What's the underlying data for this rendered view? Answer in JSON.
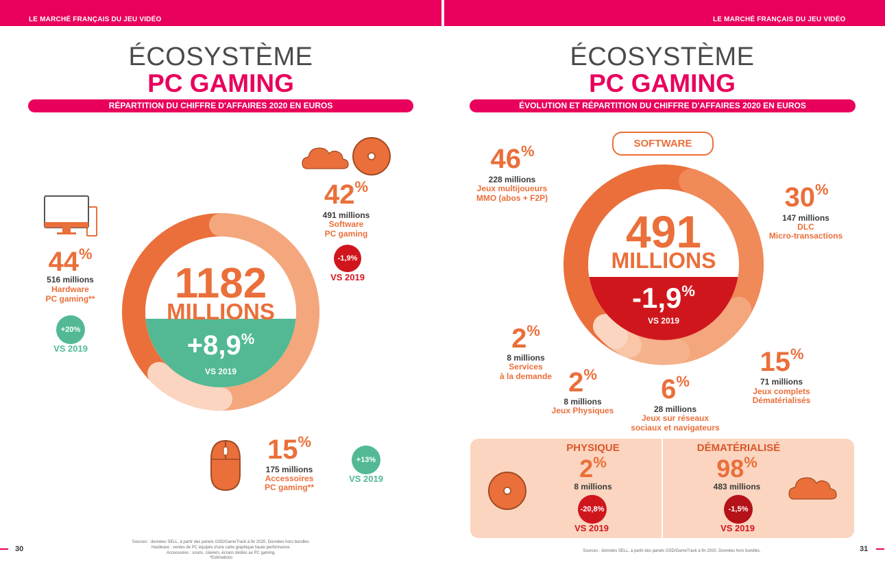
{
  "running_header": "LE MARCHÉ FRANÇAIS DU JEU VIDÉO",
  "left": {
    "title_line1": "ÉCOSYSTÈME",
    "title_line2": "PC GAMING",
    "subtitle": "RÉPARTITION DU CHIFFRE D'AFFAIRES 2020 EN EUROS",
    "total": {
      "value": "1182",
      "unit": "MILLIONS",
      "change": "+8,9",
      "vs": "VS 2019"
    },
    "segments": [
      {
        "pct": "44",
        "amount": "516 millions",
        "label": [
          "Hardware",
          "PC gaming**"
        ],
        "change": "+20%",
        "vs": "VS 2019",
        "share": 44,
        "icon": "desktop-computer-icon"
      },
      {
        "pct": "42",
        "amount": "491 millions",
        "label": [
          "Software",
          "PC gaming"
        ],
        "change": "-1,9%",
        "vs": "VS 2019",
        "share": 42,
        "icon": "cloud-icon"
      },
      {
        "pct": "15",
        "amount": "175 millions",
        "label": [
          "Accessoires",
          "PC gaming**"
        ],
        "change": "+13%",
        "vs": "VS 2019",
        "share": 15,
        "icon": "mouse-icon"
      }
    ],
    "sources": [
      "Sources : données SELL, à partir des panels GSD/GameTrack à fin 2020. Données hors bundles.",
      "Hardware : ventes de PC équipés d'une carte graphique haute performance.",
      "Accessoires : souris, claviers, écrans dédiés au PC gaming.",
      "*Estimations"
    ],
    "page": "30"
  },
  "right": {
    "title_line1": "ÉCOSYSTÈME",
    "title_line2": "PC GAMING",
    "subtitle": "ÉVOLUTION ET RÉPARTITION DU CHIFFRE D'AFFAIRES 2020 EN EUROS",
    "software_label": "SOFTWARE",
    "total": {
      "value": "491",
      "unit": "MILLIONS",
      "change": "-1,9",
      "vs": "VS 2019"
    },
    "segments": [
      {
        "pct": "46",
        "amount": "228 millions",
        "label": [
          "Jeux multijoueurs",
          "MMO (abos + F2P)"
        ],
        "share": 46
      },
      {
        "pct": "30",
        "amount": "147 millions",
        "label": [
          "DLC",
          "Micro-transactions"
        ],
        "share": 30
      },
      {
        "pct": "15",
        "amount": "71 millions",
        "label": [
          "Jeux complets",
          "Dématérialisés"
        ],
        "share": 15
      },
      {
        "pct": "6",
        "amount": "28 millions",
        "label": [
          "Jeux sur réseaux",
          "sociaux et navigateurs"
        ],
        "share": 6
      },
      {
        "pct": "2",
        "amount": "8 millions",
        "label": [
          "Jeux Physiques"
        ],
        "share": 2
      },
      {
        "pct": "2",
        "amount": "8 millions",
        "label": [
          "Services",
          "à la demande"
        ],
        "share": 2
      }
    ],
    "split": {
      "physique": {
        "title": "PHYSIQUE",
        "pct": "2",
        "amount": "8 millions",
        "change": "-20,8%",
        "vs": "VS 2019"
      },
      "dematerialise": {
        "title": "DÉMATÉRIALISÉ",
        "pct": "98",
        "amount": "483 millions",
        "change": "-1,5%",
        "vs": "VS 2019"
      }
    },
    "sources": "Sources : données SELL, à partir des panels GSD/GameTrack à fin 2020. Données hors bundles.",
    "page": "31"
  },
  "colors": {
    "magenta": "#e8005c",
    "orange": "#ea6f3a",
    "orange_light": "#f4a77c",
    "peach": "#fbd5c0",
    "green": "#52b994",
    "red": "#d0161d",
    "dark_red": "#b51219"
  }
}
